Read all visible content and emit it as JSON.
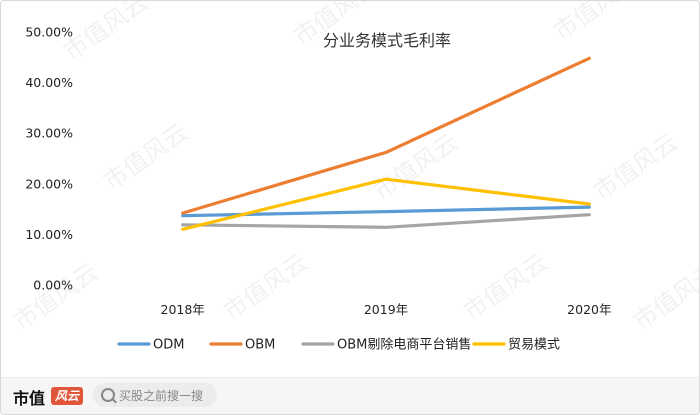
{
  "chart_data": {
    "type": "line",
    "title": "分业务模式毛利率",
    "categories": [
      "2018年",
      "2019年",
      "2020年"
    ],
    "y_ticks": [
      "0.00%",
      "10.00%",
      "20.00%",
      "30.00%",
      "40.00%",
      "50.00%"
    ],
    "ylim": [
      0,
      50
    ],
    "grid": false,
    "legend_position": "bottom",
    "series": [
      {
        "name": "ODM",
        "color": "#5b9bd5",
        "values": [
          13.7,
          14.5,
          15.4
        ]
      },
      {
        "name": "OBM",
        "color": "#ed7d31",
        "values": [
          14.2,
          26.2,
          44.8
        ]
      },
      {
        "name": "OBM剔除电商平台销售",
        "color": "#a5a5a5",
        "values": [
          11.9,
          11.4,
          13.9
        ]
      },
      {
        "name": "贸易模式",
        "color": "#ffc000",
        "values": [
          11.0,
          20.9,
          16.0
        ]
      }
    ]
  },
  "watermark_text": "市值风云",
  "footer": {
    "brand": "市值",
    "brand_logo": "风云",
    "search_placeholder": "买股之前搜一搜"
  }
}
